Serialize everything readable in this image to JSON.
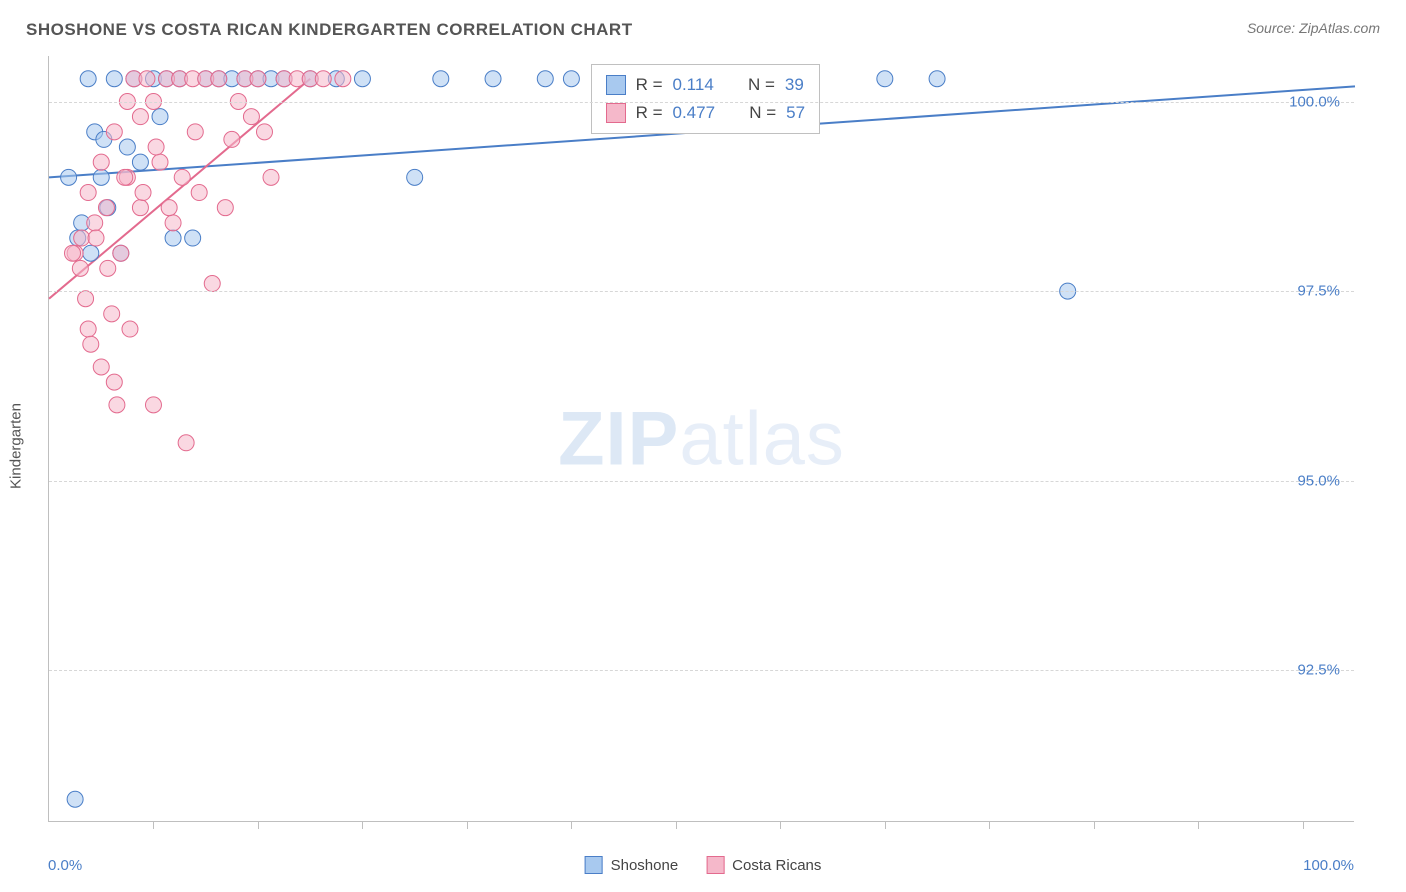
{
  "title": "SHOSHONE VS COSTA RICAN KINDERGARTEN CORRELATION CHART",
  "source": "Source: ZipAtlas.com",
  "yaxis_label": "Kindergarten",
  "watermark_bold": "ZIP",
  "watermark_light": "atlas",
  "x_min_label": "0.0%",
  "x_max_label": "100.0%",
  "chart": {
    "type": "scatter",
    "xlim": [
      0,
      100
    ],
    "ylim": [
      90.5,
      100.6
    ],
    "y_ticks": [
      92.5,
      95.0,
      97.5,
      100.0
    ],
    "y_tick_labels": [
      "92.5%",
      "95.0%",
      "97.5%",
      "100.0%"
    ],
    "x_ticks": [
      8,
      16,
      24,
      32,
      40,
      48,
      56,
      64,
      72,
      80,
      88,
      96
    ],
    "grid_color": "#d7d7d7",
    "axis_color": "#bfbfbf",
    "background_color": "#ffffff",
    "label_color": "#4a7ec7",
    "marker_radius": 8,
    "marker_opacity": 0.55,
    "line_width": 2,
    "series": [
      {
        "name": "Shoshone",
        "color_fill": "#a8c9ef",
        "color_stroke": "#4a7ec7",
        "points": [
          [
            2.0,
            90.8
          ],
          [
            3.0,
            100.3
          ],
          [
            4.0,
            99.0
          ],
          [
            4.5,
            98.6
          ],
          [
            5.0,
            100.3
          ],
          [
            5.5,
            98.0
          ],
          [
            6.0,
            99.4
          ],
          [
            6.5,
            100.3
          ],
          [
            7.0,
            99.2
          ],
          [
            8.0,
            100.3
          ],
          [
            8.5,
            99.8
          ],
          [
            9.0,
            100.3
          ],
          [
            9.5,
            98.2
          ],
          [
            10.0,
            100.3
          ],
          [
            2.5,
            98.4
          ],
          [
            3.5,
            99.6
          ],
          [
            11.0,
            98.2
          ],
          [
            12.0,
            100.3
          ],
          [
            13.0,
            100.3
          ],
          [
            14.0,
            100.3
          ],
          [
            15.0,
            100.3
          ],
          [
            16.0,
            100.3
          ],
          [
            17.0,
            100.3
          ],
          [
            18.0,
            100.3
          ],
          [
            20.0,
            100.3
          ],
          [
            22.0,
            100.3
          ],
          [
            24.0,
            100.3
          ],
          [
            28.0,
            99.0
          ],
          [
            30.0,
            100.3
          ],
          [
            34.0,
            100.3
          ],
          [
            38.0,
            100.3
          ],
          [
            40.0,
            100.3
          ],
          [
            64.0,
            100.3
          ],
          [
            68.0,
            100.3
          ],
          [
            78.0,
            97.5
          ],
          [
            1.5,
            99.0
          ],
          [
            2.2,
            98.2
          ],
          [
            3.2,
            98.0
          ],
          [
            4.2,
            99.5
          ]
        ],
        "trend": {
          "x1": 0,
          "y1": 99.0,
          "x2": 100,
          "y2": 100.2
        },
        "stats": {
          "R": "0.114",
          "N": "39"
        }
      },
      {
        "name": "Costa Ricans",
        "color_fill": "#f5b8ca",
        "color_stroke": "#e36a8e",
        "points": [
          [
            2.0,
            98.0
          ],
          [
            2.5,
            98.2
          ],
          [
            3.0,
            97.0
          ],
          [
            3.5,
            98.4
          ],
          [
            4.0,
            96.5
          ],
          [
            4.5,
            97.8
          ],
          [
            5.0,
            96.3
          ],
          [
            5.5,
            98.0
          ],
          [
            6.0,
            99.0
          ],
          [
            6.5,
            100.3
          ],
          [
            7.0,
            98.6
          ],
          [
            7.5,
            100.3
          ],
          [
            8.0,
            96.0
          ],
          [
            8.5,
            99.2
          ],
          [
            9.0,
            100.3
          ],
          [
            9.5,
            98.4
          ],
          [
            10.0,
            100.3
          ],
          [
            10.5,
            95.5
          ],
          [
            11.0,
            100.3
          ],
          [
            11.5,
            98.8
          ],
          [
            12.0,
            100.3
          ],
          [
            12.5,
            97.6
          ],
          [
            13.0,
            100.3
          ],
          [
            14.0,
            99.5
          ],
          [
            15.0,
            100.3
          ],
          [
            16.0,
            100.3
          ],
          [
            17.0,
            99.0
          ],
          [
            18.0,
            100.3
          ],
          [
            19.0,
            100.3
          ],
          [
            20.0,
            100.3
          ],
          [
            21.0,
            100.3
          ],
          [
            22.5,
            100.3
          ],
          [
            2.8,
            97.4
          ],
          [
            3.2,
            96.8
          ],
          [
            4.8,
            97.2
          ],
          [
            5.2,
            96.0
          ],
          [
            6.2,
            97.0
          ],
          [
            1.8,
            98.0
          ],
          [
            2.4,
            97.8
          ],
          [
            3.6,
            98.2
          ],
          [
            4.4,
            98.6
          ],
          [
            5.8,
            99.0
          ],
          [
            7.2,
            98.8
          ],
          [
            8.2,
            99.4
          ],
          [
            9.2,
            98.6
          ],
          [
            10.2,
            99.0
          ],
          [
            11.2,
            99.6
          ],
          [
            3.0,
            98.8
          ],
          [
            4.0,
            99.2
          ],
          [
            5.0,
            99.6
          ],
          [
            6.0,
            100.0
          ],
          [
            7.0,
            99.8
          ],
          [
            8.0,
            100.0
          ],
          [
            13.5,
            98.6
          ],
          [
            14.5,
            100.0
          ],
          [
            15.5,
            99.8
          ],
          [
            16.5,
            99.6
          ]
        ],
        "trend": {
          "x1": 0,
          "y1": 97.4,
          "x2": 20,
          "y2": 100.3
        },
        "stats": {
          "R": "0.477",
          "N": "57"
        }
      }
    ],
    "stats_box": {
      "left_pct": 41.5,
      "top_pct": 1.0
    }
  },
  "legend": [
    {
      "label": "Shoshone",
      "fill": "#a8c9ef",
      "stroke": "#4a7ec7"
    },
    {
      "label": "Costa Ricans",
      "fill": "#f5b8ca",
      "stroke": "#e36a8e"
    }
  ]
}
